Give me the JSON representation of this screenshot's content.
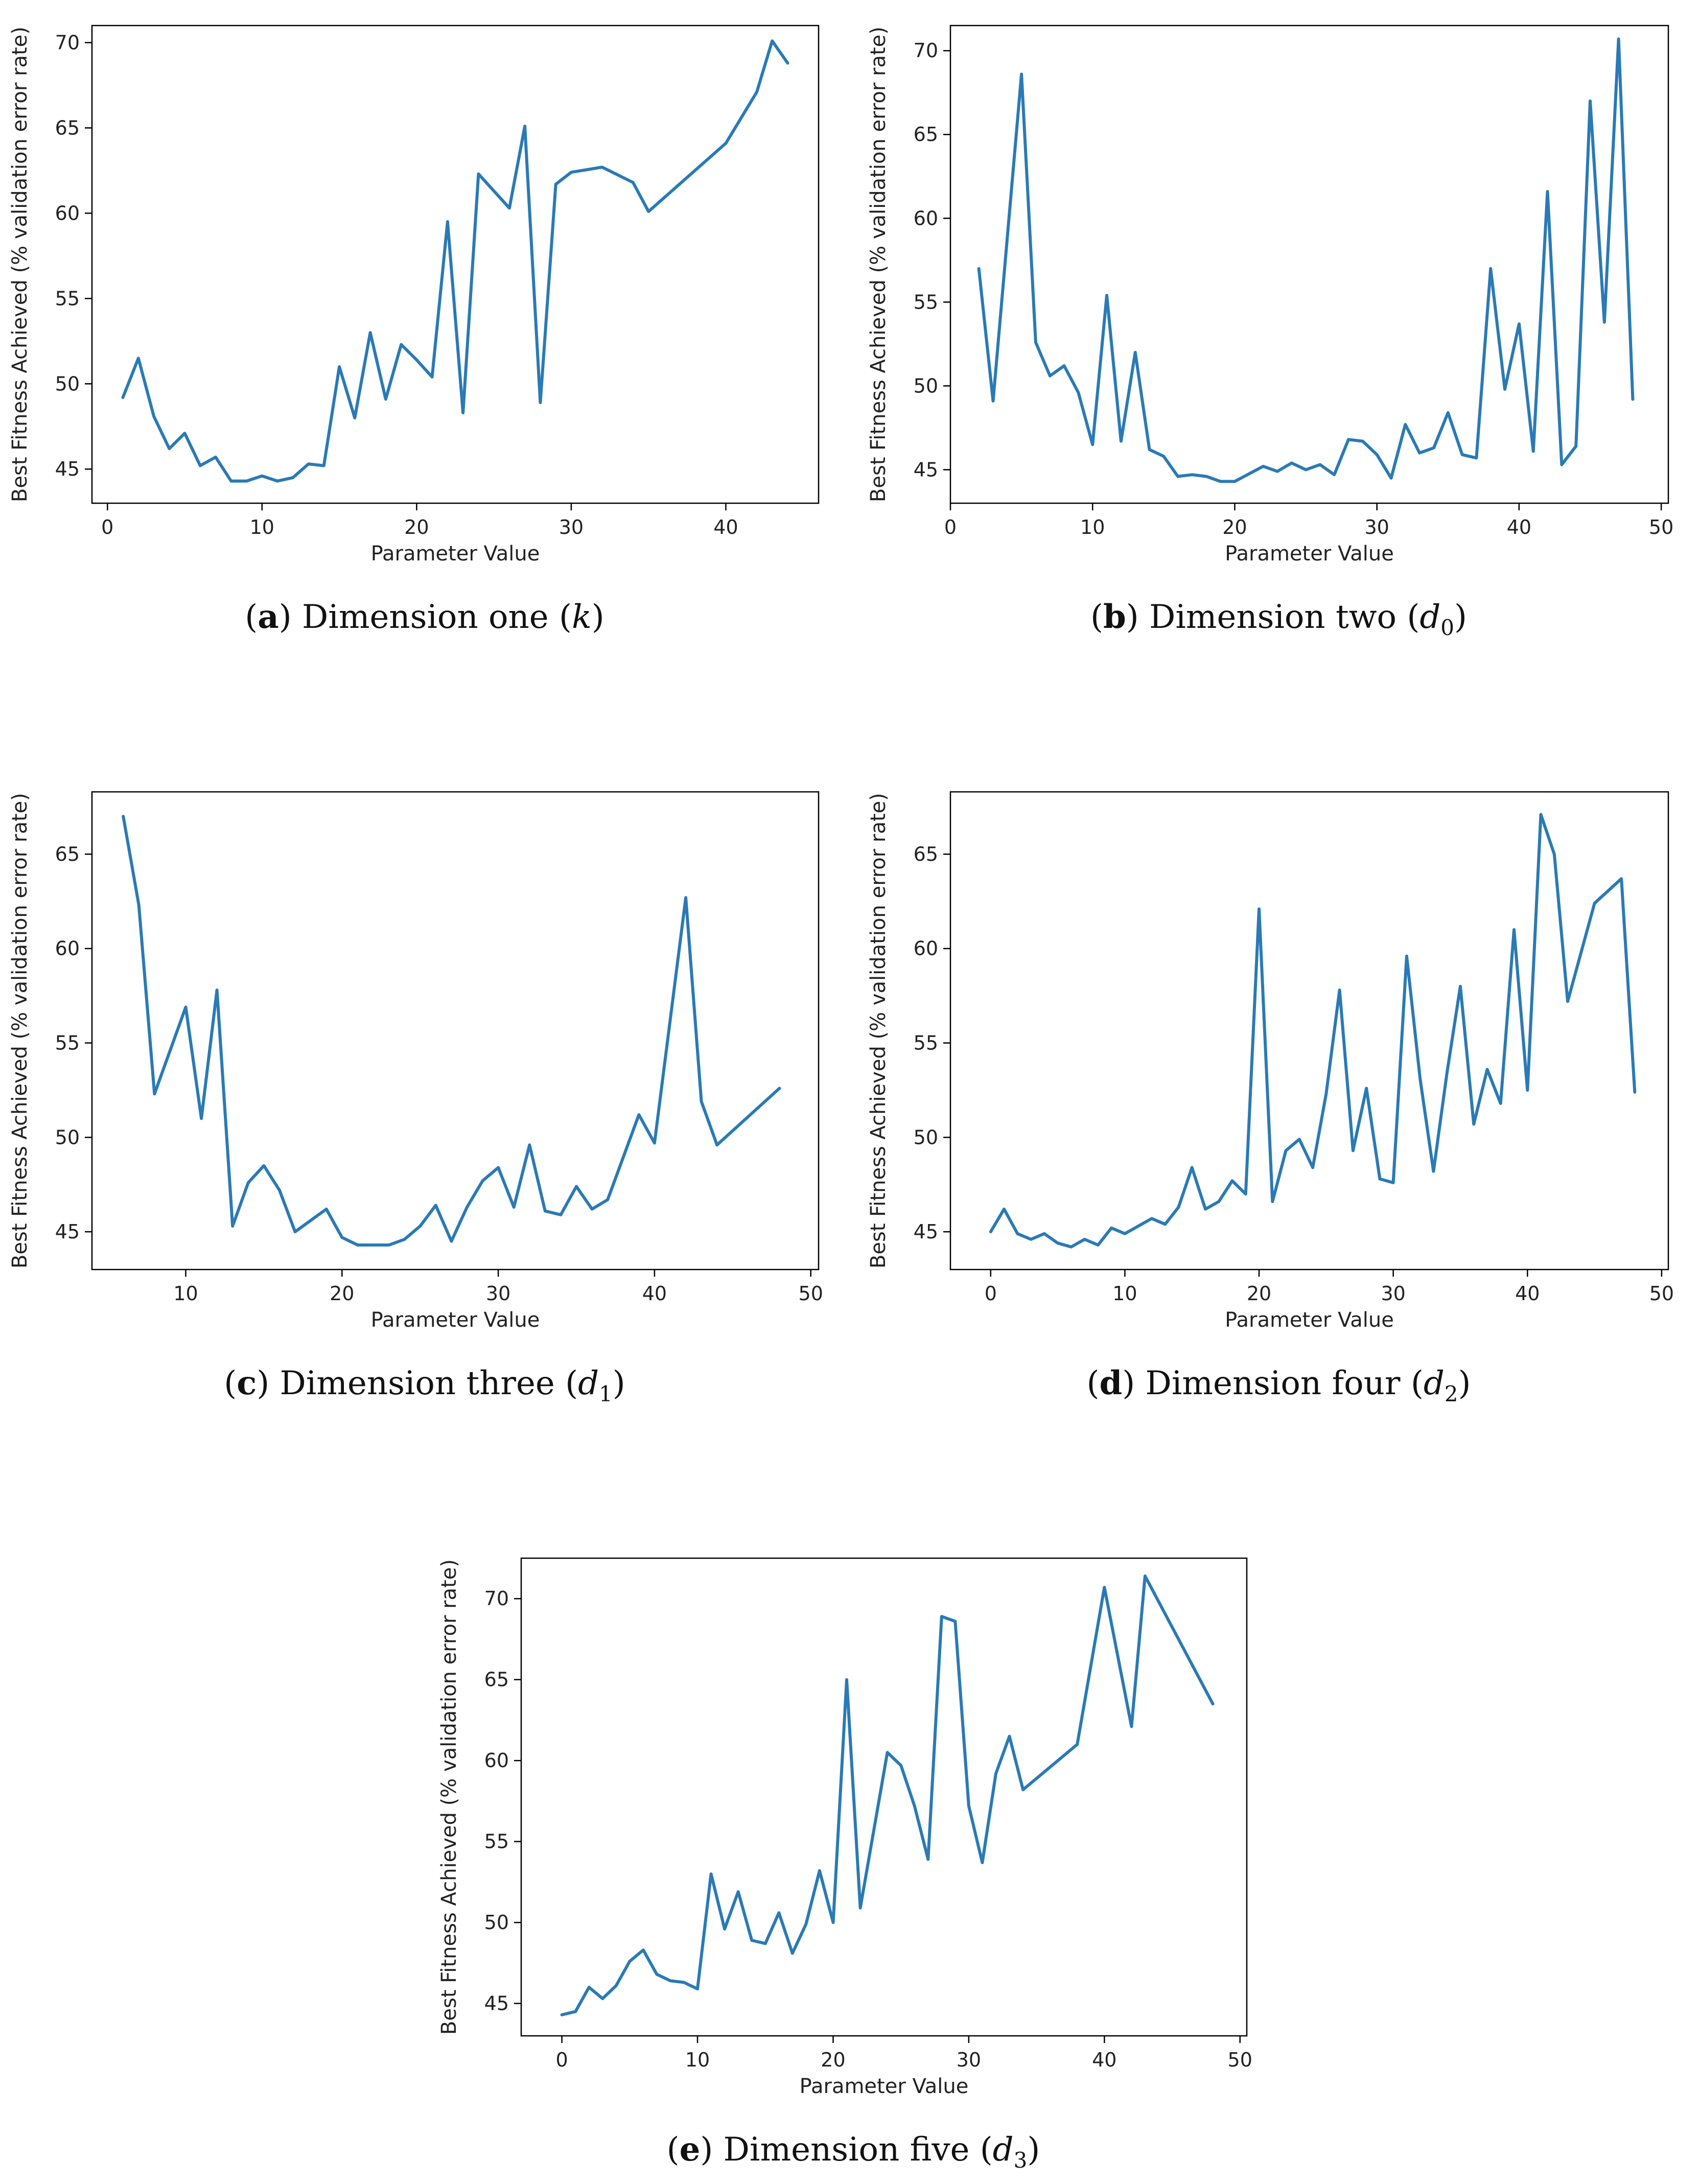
{
  "figure": {
    "line_color": "#2a7ab5",
    "axis_color": "#000000"
  },
  "chart_data": [
    {
      "id": "a",
      "type": "line",
      "caption": {
        "letter": "a",
        "text": "Dimension one",
        "symbol": "k",
        "subscript": ""
      },
      "xlabel": "Parameter Value",
      "ylabel": "Best Fitness Achieved (% validation error rate)",
      "xlim": [
        -1,
        46
      ],
      "ylim": [
        43,
        71
      ],
      "xticks": [
        0,
        10,
        20,
        30,
        40
      ],
      "yticks": [
        45,
        50,
        55,
        60,
        65,
        70
      ],
      "x": [
        1,
        2,
        3,
        4,
        5,
        6,
        7,
        8,
        9,
        10,
        11,
        12,
        13,
        14,
        15,
        16,
        17,
        18,
        19,
        20,
        21,
        22,
        23,
        24,
        26,
        27,
        28,
        29,
        30,
        32,
        34,
        35,
        40,
        42,
        43,
        44
      ],
      "y": [
        49.2,
        51.5,
        48.1,
        46.2,
        47.1,
        45.2,
        45.7,
        44.3,
        44.3,
        44.6,
        44.3,
        44.5,
        45.3,
        45.2,
        51.0,
        48.0,
        53.0,
        49.1,
        52.3,
        51.4,
        50.4,
        59.5,
        48.3,
        62.3,
        60.3,
        65.1,
        48.9,
        61.7,
        62.4,
        62.7,
        61.8,
        60.1,
        64.1,
        67.1,
        70.1,
        68.8
      ]
    },
    {
      "id": "b",
      "type": "line",
      "caption": {
        "letter": "b",
        "text": "Dimension two",
        "symbol": "d",
        "subscript": "0"
      },
      "xlabel": "Parameter Value",
      "ylabel": "Best Fitness Achieved (% validation error rate)",
      "xlim": [
        0,
        50.5
      ],
      "ylim": [
        43,
        71.5
      ],
      "xticks": [
        0,
        10,
        20,
        30,
        40,
        50
      ],
      "yticks": [
        45,
        50,
        55,
        60,
        65,
        70
      ],
      "x": [
        2,
        3,
        5,
        6,
        7,
        8,
        9,
        10,
        11,
        12,
        13,
        14,
        15,
        16,
        17,
        18,
        19,
        20,
        22,
        23,
        24,
        25,
        26,
        27,
        28,
        29,
        30,
        31,
        32,
        33,
        34,
        35,
        36,
        37,
        38,
        39,
        40,
        41,
        42,
        43,
        44,
        45,
        46,
        47,
        48
      ],
      "y": [
        57.0,
        49.1,
        68.6,
        52.6,
        50.6,
        51.2,
        49.6,
        46.5,
        55.4,
        46.7,
        52.0,
        46.2,
        45.8,
        44.6,
        44.7,
        44.6,
        44.3,
        44.3,
        45.2,
        44.9,
        45.4,
        45.0,
        45.3,
        44.7,
        46.8,
        46.7,
        45.9,
        44.5,
        47.7,
        46.0,
        46.3,
        48.4,
        45.9,
        45.7,
        57.0,
        49.8,
        53.7,
        46.1,
        61.6,
        45.3,
        46.4,
        67.0,
        53.8,
        70.7,
        49.2
      ]
    },
    {
      "id": "c",
      "type": "line",
      "caption": {
        "letter": "c",
        "text": "Dimension three",
        "symbol": "d",
        "subscript": "1"
      },
      "xlabel": "Parameter Value",
      "ylabel": "Best Fitness Achieved (% validation error rate)",
      "xlim": [
        4,
        50.5
      ],
      "ylim": [
        43,
        68.3
      ],
      "xticks": [
        10,
        20,
        30,
        40,
        50
      ],
      "yticks": [
        45,
        50,
        55,
        60,
        65
      ],
      "x": [
        6,
        7,
        8,
        10,
        11,
        12,
        13,
        14,
        15,
        16,
        17,
        19,
        20,
        21,
        23,
        24,
        25,
        26,
        27,
        28,
        29,
        30,
        31,
        32,
        33,
        34,
        35,
        36,
        37,
        39,
        40,
        42,
        43,
        44,
        48
      ],
      "y": [
        67.0,
        62.3,
        52.3,
        56.9,
        51.0,
        57.8,
        45.3,
        47.6,
        48.5,
        47.2,
        45.0,
        46.2,
        44.7,
        44.3,
        44.3,
        44.6,
        45.3,
        46.4,
        44.5,
        46.3,
        47.7,
        48.4,
        46.3,
        49.6,
        46.1,
        45.9,
        47.4,
        46.2,
        46.7,
        51.2,
        49.7,
        62.7,
        51.9,
        49.6,
        52.6
      ]
    },
    {
      "id": "d",
      "type": "line",
      "caption": {
        "letter": "d",
        "text": "Dimension four",
        "symbol": "d",
        "subscript": "2"
      },
      "xlabel": "Parameter Value",
      "ylabel": "Best Fitness Achieved (% validation error rate)",
      "xlim": [
        -3,
        50.5
      ],
      "ylim": [
        43,
        68.3
      ],
      "xticks": [
        0,
        10,
        20,
        30,
        40,
        50
      ],
      "yticks": [
        45,
        50,
        55,
        60,
        65
      ],
      "x": [
        0,
        1,
        2,
        3,
        4,
        5,
        6,
        7,
        8,
        9,
        10,
        11,
        12,
        13,
        14,
        15,
        16,
        17,
        18,
        19,
        20,
        21,
        22,
        23,
        24,
        25,
        26,
        27,
        28,
        29,
        30,
        31,
        32,
        33,
        34,
        35,
        36,
        37,
        38,
        39,
        40,
        41,
        42,
        43,
        45,
        47,
        48
      ],
      "y": [
        45.0,
        46.2,
        44.9,
        44.6,
        44.9,
        44.4,
        44.2,
        44.6,
        44.3,
        45.2,
        44.9,
        45.3,
        45.7,
        45.4,
        46.3,
        48.4,
        46.2,
        46.6,
        47.7,
        47.0,
        62.1,
        46.6,
        49.3,
        49.9,
        48.4,
        52.3,
        57.8,
        49.3,
        52.6,
        47.8,
        47.6,
        59.6,
        53.1,
        48.2,
        53.4,
        58.0,
        50.7,
        53.6,
        51.8,
        61.0,
        52.5,
        67.1,
        65.0,
        57.2,
        62.4,
        63.7,
        52.4
      ]
    },
    {
      "id": "e",
      "type": "line",
      "caption": {
        "letter": "e",
        "text": "Dimension five",
        "symbol": "d",
        "subscript": "3"
      },
      "xlabel": "Parameter Value",
      "ylabel": "Best Fitness Achieved (% validation error rate)",
      "xlim": [
        -3,
        50.5
      ],
      "ylim": [
        43,
        72.5
      ],
      "xticks": [
        0,
        10,
        20,
        30,
        40,
        50
      ],
      "yticks": [
        45,
        50,
        55,
        60,
        65,
        70
      ],
      "x": [
        0,
        1,
        2,
        3,
        4,
        5,
        6,
        7,
        8,
        9,
        10,
        11,
        12,
        13,
        14,
        15,
        16,
        17,
        18,
        19,
        20,
        21,
        22,
        24,
        25,
        26,
        27,
        28,
        29,
        30,
        31,
        32,
        33,
        34,
        38,
        40,
        42,
        43,
        48
      ],
      "y": [
        44.3,
        44.5,
        46.0,
        45.3,
        46.1,
        47.6,
        48.3,
        46.8,
        46.4,
        46.3,
        45.9,
        53.0,
        49.6,
        51.9,
        48.9,
        48.7,
        50.6,
        48.1,
        49.9,
        53.2,
        50.0,
        65.0,
        50.9,
        60.5,
        59.7,
        57.2,
        53.9,
        68.9,
        68.6,
        57.2,
        53.7,
        59.2,
        61.5,
        58.2,
        61.0,
        70.7,
        62.1,
        71.4,
        63.5
      ]
    }
  ]
}
